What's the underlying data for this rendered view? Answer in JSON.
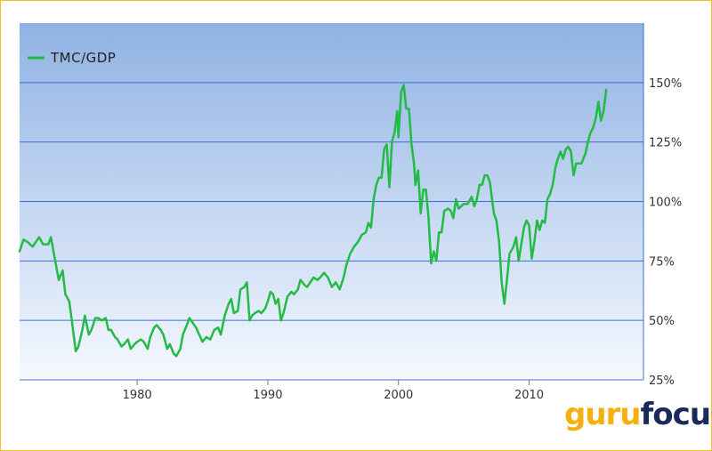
{
  "chart_data": {
    "type": "line",
    "title": "",
    "xlabel": "",
    "ylabel": "",
    "y_unit": "%",
    "xlim": [
      1971,
      2018.75
    ],
    "ylim": [
      25,
      175
    ],
    "x_ticks": [
      1980,
      1990,
      2000,
      2010
    ],
    "y_ticks": [
      25,
      50,
      75,
      100,
      125,
      150
    ],
    "y_tick_labels": [
      "25%",
      "50%",
      "75%",
      "100%",
      "125%",
      "150%"
    ],
    "legend": "top-left",
    "grid": "horizontal",
    "series": [
      {
        "name": "TMC/GDP",
        "color": "#22bb44",
        "points": [
          [
            1971.0,
            79
          ],
          [
            1971.3,
            84
          ],
          [
            1971.6,
            83
          ],
          [
            1972.0,
            81
          ],
          [
            1972.5,
            85
          ],
          [
            1972.8,
            82
          ],
          [
            1973.2,
            82
          ],
          [
            1973.4,
            85
          ],
          [
            1973.7,
            76
          ],
          [
            1974.0,
            67
          ],
          [
            1974.3,
            71
          ],
          [
            1974.5,
            61
          ],
          [
            1974.8,
            58
          ],
          [
            1975.0,
            50
          ],
          [
            1975.3,
            37
          ],
          [
            1975.5,
            39
          ],
          [
            1975.8,
            46
          ],
          [
            1976.0,
            52
          ],
          [
            1976.3,
            44
          ],
          [
            1976.5,
            46
          ],
          [
            1976.8,
            51
          ],
          [
            1977.0,
            51
          ],
          [
            1977.3,
            50
          ],
          [
            1977.6,
            51
          ],
          [
            1977.8,
            46
          ],
          [
            1978.0,
            46
          ],
          [
            1978.3,
            43
          ],
          [
            1978.5,
            42
          ],
          [
            1978.8,
            39
          ],
          [
            1979.0,
            40
          ],
          [
            1979.3,
            42
          ],
          [
            1979.5,
            38
          ],
          [
            1979.8,
            40
          ],
          [
            1980.0,
            41
          ],
          [
            1980.3,
            42
          ],
          [
            1980.5,
            41
          ],
          [
            1980.8,
            38
          ],
          [
            1981.0,
            43
          ],
          [
            1981.3,
            47
          ],
          [
            1981.5,
            48
          ],
          [
            1981.8,
            46
          ],
          [
            1982.0,
            44
          ],
          [
            1982.3,
            38
          ],
          [
            1982.5,
            40
          ],
          [
            1982.8,
            36
          ],
          [
            1983.0,
            35
          ],
          [
            1983.3,
            38
          ],
          [
            1983.5,
            44
          ],
          [
            1983.8,
            48
          ],
          [
            1984.0,
            51
          ],
          [
            1984.5,
            47
          ],
          [
            1985.0,
            41
          ],
          [
            1985.3,
            43
          ],
          [
            1985.6,
            42
          ],
          [
            1985.9,
            46
          ],
          [
            1986.2,
            47
          ],
          [
            1986.4,
            44
          ],
          [
            1986.7,
            52
          ],
          [
            1987.0,
            57
          ],
          [
            1987.2,
            59
          ],
          [
            1987.4,
            53
          ],
          [
            1987.7,
            54
          ],
          [
            1987.9,
            63
          ],
          [
            1988.2,
            64
          ],
          [
            1988.4,
            66
          ],
          [
            1988.6,
            50
          ],
          [
            1988.8,
            52
          ],
          [
            1989.0,
            53
          ],
          [
            1989.3,
            54
          ],
          [
            1989.5,
            53
          ],
          [
            1989.8,
            55
          ],
          [
            1990.0,
            58
          ],
          [
            1990.2,
            62
          ],
          [
            1990.4,
            61
          ],
          [
            1990.6,
            57
          ],
          [
            1990.8,
            59
          ],
          [
            1991.0,
            50
          ],
          [
            1991.2,
            53
          ],
          [
            1991.5,
            60
          ],
          [
            1991.8,
            62
          ],
          [
            1992.0,
            61
          ],
          [
            1992.3,
            63
          ],
          [
            1992.5,
            67
          ],
          [
            1992.8,
            65
          ],
          [
            1993.0,
            64
          ],
          [
            1993.5,
            68
          ],
          [
            1993.8,
            67
          ],
          [
            1994.0,
            68
          ],
          [
            1994.3,
            70
          ],
          [
            1994.6,
            68
          ],
          [
            1994.9,
            64
          ],
          [
            1995.2,
            66
          ],
          [
            1995.5,
            63
          ],
          [
            1995.8,
            68
          ],
          [
            1996.0,
            73
          ],
          [
            1996.3,
            78
          ],
          [
            1996.6,
            81
          ],
          [
            1996.9,
            83
          ],
          [
            1997.2,
            86
          ],
          [
            1997.5,
            87
          ],
          [
            1997.7,
            91
          ],
          [
            1997.9,
            89
          ],
          [
            1998.1,
            101
          ],
          [
            1998.3,
            107
          ],
          [
            1998.5,
            110
          ],
          [
            1998.7,
            110
          ],
          [
            1998.9,
            122
          ],
          [
            1999.1,
            124
          ],
          [
            1999.3,
            106
          ],
          [
            1999.5,
            125
          ],
          [
            1999.7,
            129
          ],
          [
            1999.9,
            138
          ],
          [
            2000.0,
            127
          ],
          [
            2000.2,
            146
          ],
          [
            2000.4,
            149
          ],
          [
            2000.6,
            139
          ],
          [
            2000.8,
            139
          ],
          [
            2001.0,
            124
          ],
          [
            2001.2,
            115
          ],
          [
            2001.3,
            107
          ],
          [
            2001.5,
            113
          ],
          [
            2001.7,
            95
          ],
          [
            2001.9,
            105
          ],
          [
            2002.1,
            105
          ],
          [
            2002.3,
            93
          ],
          [
            2002.5,
            74
          ],
          [
            2002.7,
            79
          ],
          [
            2002.9,
            75
          ],
          [
            2003.1,
            87
          ],
          [
            2003.3,
            87
          ],
          [
            2003.5,
            96
          ],
          [
            2003.8,
            97
          ],
          [
            2004.0,
            96
          ],
          [
            2004.2,
            93
          ],
          [
            2004.4,
            101
          ],
          [
            2004.6,
            97
          ],
          [
            2004.8,
            98
          ],
          [
            2005.0,
            99
          ],
          [
            2005.3,
            99
          ],
          [
            2005.6,
            102
          ],
          [
            2005.8,
            98
          ],
          [
            2006.0,
            101
          ],
          [
            2006.2,
            107
          ],
          [
            2006.4,
            107
          ],
          [
            2006.6,
            111
          ],
          [
            2006.8,
            111
          ],
          [
            2007.0,
            108
          ],
          [
            2007.3,
            95
          ],
          [
            2007.5,
            92
          ],
          [
            2007.7,
            83
          ],
          [
            2007.9,
            66
          ],
          [
            2008.1,
            57
          ],
          [
            2008.3,
            67
          ],
          [
            2008.5,
            78
          ],
          [
            2008.8,
            81
          ],
          [
            2009.0,
            85
          ],
          [
            2009.2,
            75
          ],
          [
            2009.4,
            82
          ],
          [
            2009.6,
            89
          ],
          [
            2009.8,
            92
          ],
          [
            2010.0,
            90
          ],
          [
            2010.2,
            76
          ],
          [
            2010.4,
            83
          ],
          [
            2010.6,
            92
          ],
          [
            2010.8,
            88
          ],
          [
            2011.0,
            92
          ],
          [
            2011.2,
            91
          ],
          [
            2011.4,
            101
          ],
          [
            2011.6,
            103
          ],
          [
            2011.8,
            107
          ],
          [
            2012.0,
            114
          ],
          [
            2012.2,
            118
          ],
          [
            2012.4,
            121
          ],
          [
            2012.6,
            118
          ],
          [
            2012.8,
            122
          ],
          [
            2013.0,
            123
          ],
          [
            2013.2,
            121
          ],
          [
            2013.4,
            111
          ],
          [
            2013.6,
            116
          ],
          [
            2013.8,
            116
          ],
          [
            2014.0,
            116
          ],
          [
            2014.3,
            120
          ],
          [
            2014.5,
            125
          ],
          [
            2014.7,
            129
          ],
          [
            2014.9,
            131
          ],
          [
            2015.1,
            135
          ],
          [
            2015.3,
            142
          ],
          [
            2015.5,
            134
          ],
          [
            2015.7,
            138
          ],
          [
            2015.9,
            147
          ]
        ]
      }
    ]
  }
}
